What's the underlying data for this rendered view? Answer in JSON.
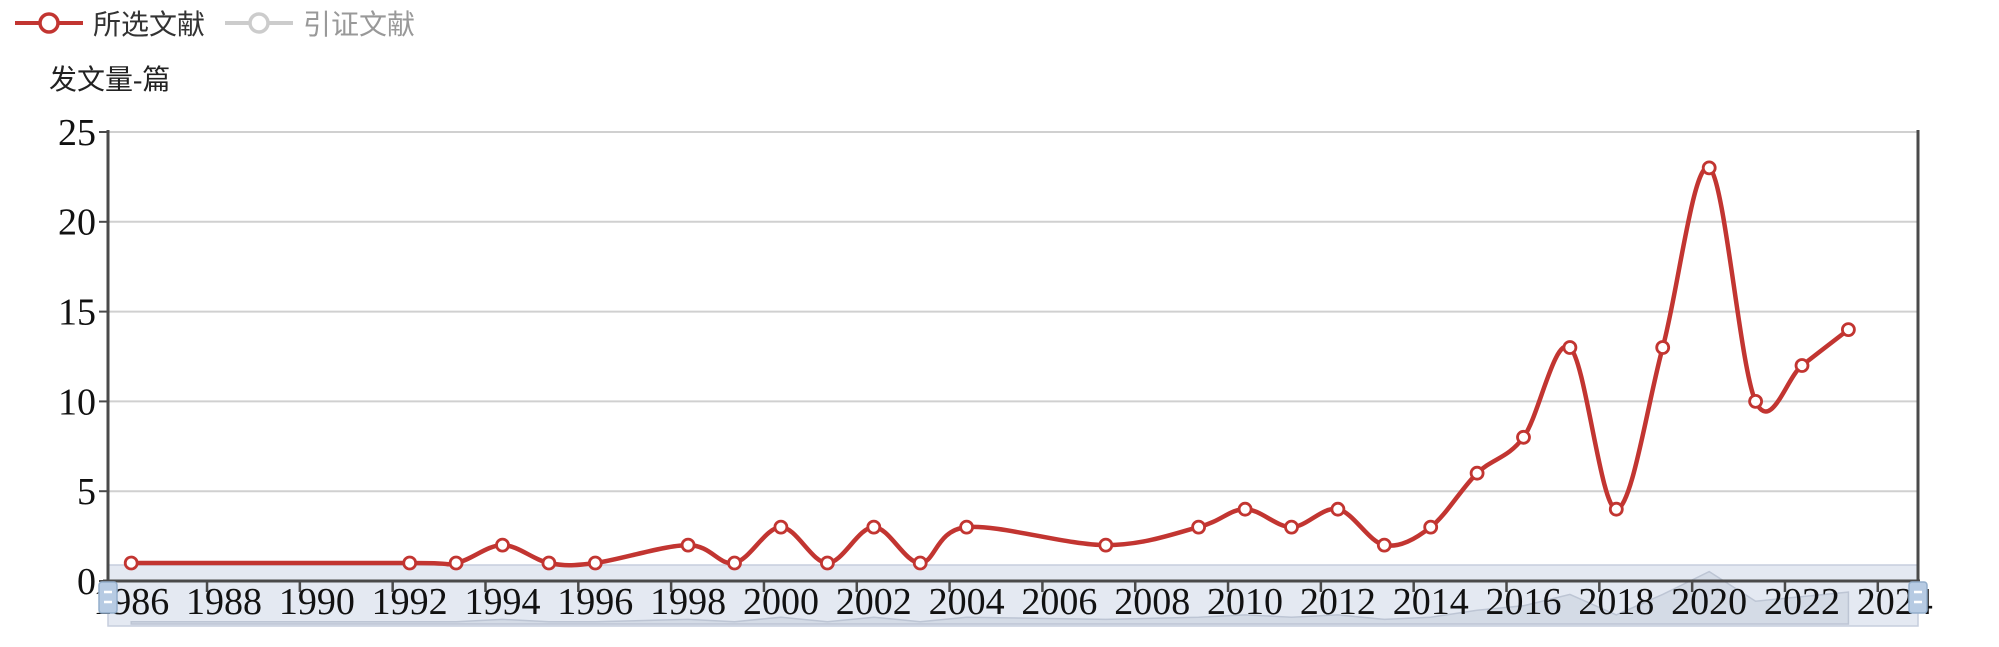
{
  "legend": {
    "items": [
      {
        "label": "所选文献",
        "color": "#c23531",
        "text_color": "#333333",
        "selected": true
      },
      {
        "label": "引证文献",
        "color": "#cccccc",
        "text_color": "#999999",
        "selected": false
      }
    ]
  },
  "y_axis": {
    "title": "发文量-篇",
    "tick_labels": [
      "0",
      "5",
      "10",
      "15",
      "20",
      "25"
    ],
    "min": 0,
    "max": 25,
    "interval": 5
  },
  "x_axis": {
    "first_year": 1986,
    "last_year": 2024,
    "visible_labels": [
      "1986",
      "1988",
      "1990",
      "1992",
      "1994",
      "1996",
      "1998",
      "2000",
      "2002",
      "2004",
      "2006",
      "2008",
      "2010",
      "2012",
      "2014",
      "2016",
      "2018",
      "2020",
      "2022",
      "2024"
    ]
  },
  "chart_data": {
    "type": "line",
    "title": "",
    "xlabel": "",
    "ylabel": "发文量-篇",
    "ylim": [
      0,
      25
    ],
    "grid": true,
    "legend_position": "top-left",
    "smooth": true,
    "categories": [
      1986,
      1987,
      1988,
      1989,
      1990,
      1991,
      1992,
      1993,
      1994,
      1995,
      1996,
      1997,
      1998,
      1999,
      2000,
      2001,
      2002,
      2003,
      2004,
      2005,
      2006,
      2007,
      2008,
      2009,
      2010,
      2011,
      2012,
      2013,
      2014,
      2015,
      2016,
      2017,
      2018,
      2019,
      2020,
      2021,
      2022,
      2023,
      2024
    ],
    "series": [
      {
        "name": "所选文献",
        "selected": true,
        "points": [
          [
            1986,
            1
          ],
          [
            1992,
            1
          ],
          [
            1993,
            1
          ],
          [
            1994,
            2
          ],
          [
            1995,
            1
          ],
          [
            1996,
            1
          ],
          [
            1998,
            2
          ],
          [
            1999,
            1
          ],
          [
            2000,
            3
          ],
          [
            2001,
            1
          ],
          [
            2002,
            3
          ],
          [
            2003,
            1
          ],
          [
            2004,
            3
          ],
          [
            2007,
            2
          ],
          [
            2009,
            3
          ],
          [
            2010,
            4
          ],
          [
            2011,
            3
          ],
          [
            2012,
            4
          ],
          [
            2013,
            2
          ],
          [
            2014,
            3
          ],
          [
            2015,
            6
          ],
          [
            2016,
            8
          ],
          [
            2017,
            13
          ],
          [
            2018,
            4
          ],
          [
            2019,
            13
          ],
          [
            2020,
            23
          ],
          [
            2021,
            10
          ],
          [
            2022,
            12
          ],
          [
            2023,
            14
          ]
        ]
      },
      {
        "name": "引证文献",
        "selected": false,
        "points": []
      }
    ]
  },
  "colors": {
    "series_red": "#c23531",
    "marker_fill": "#ffffff",
    "grid_line": "#d0d0d0",
    "axis_line": "#4a4a4a",
    "tick_text": "#111111",
    "band_fill": "#e4e9f2",
    "band_border": "#c6cedd",
    "shadow_fill": "#d4dbe6",
    "shadow_stroke": "#bbc4d3",
    "handle_fill": "#b7cbe3",
    "handle_border": "#93aecb"
  }
}
